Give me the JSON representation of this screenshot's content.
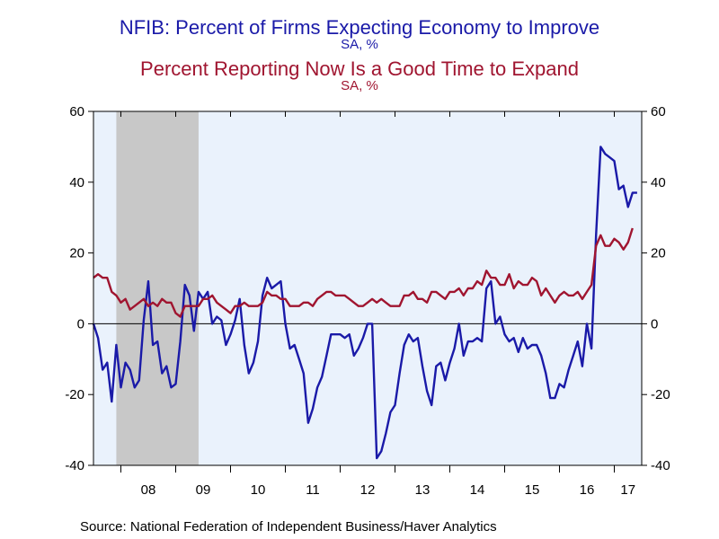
{
  "chart_data": {
    "type": "line",
    "title": "NFIB: Percent of Firms Expecting Economy to Improve",
    "title_sub": "SA, %",
    "title2": "Percent Reporting Now Is a Good Time to Expand",
    "title2_sub": "SA, %",
    "source": "Source:  National Federation of Independent Business/Haver Analytics",
    "x_ticks": [
      "08",
      "09",
      "10",
      "11",
      "12",
      "13",
      "14",
      "15",
      "16",
      "17"
    ],
    "x_start_year": 2007.5,
    "x_end_year": 2017.5,
    "ylim": [
      -40,
      60
    ],
    "y_ticks": [
      -40,
      -20,
      0,
      20,
      40,
      60
    ],
    "grid": false,
    "recession_shading": [
      2007.917,
      2009.417
    ],
    "colors": {
      "series1": "#1a1aa8",
      "series2": "#a01530",
      "plot_bg": "#eaf2fc",
      "recession": "#c8c8c8"
    },
    "series": [
      {
        "name": "NFIB: Percent of Firms Expecting Economy to Improve",
        "color": "#1a1aa8",
        "x_start": 2007.5,
        "step_months": 1,
        "values": [
          0,
          -4,
          -13,
          -11,
          -22,
          -6,
          -18,
          -11,
          -13,
          -18,
          -16,
          1,
          12,
          -6,
          -5,
          -14,
          -12,
          -18,
          -17,
          -5,
          11,
          8,
          -2,
          9,
          7,
          9,
          0,
          2,
          1,
          -6,
          -3,
          1,
          7,
          -6,
          -14,
          -11,
          -5,
          8,
          13,
          10,
          11,
          12,
          0,
          -7,
          -6,
          -10,
          -14,
          -28,
          -24,
          -18,
          -15,
          -9,
          -3,
          -3,
          -3,
          -4,
          -3,
          -9,
          -7,
          -4,
          0,
          0,
          -38,
          -36,
          -31,
          -25,
          -23,
          -14,
          -6,
          -3,
          -5,
          -4,
          -12,
          -19,
          -23,
          -12,
          -11,
          -16,
          -11,
          -7,
          0,
          -9,
          -5,
          -5,
          -4,
          -5,
          10,
          12,
          0,
          2,
          -3,
          -5,
          -4,
          -8,
          -4,
          -7,
          -6,
          -6,
          -9,
          -14,
          -21,
          -21,
          -17,
          -18,
          -13,
          -9,
          -5,
          -12,
          0,
          -7,
          25,
          50,
          48,
          47,
          46,
          38,
          39,
          33,
          37,
          37
        ]
      },
      {
        "name": "Percent Reporting Now Is a Good Time to Expand",
        "color": "#a01530",
        "x_start": 2007.5,
        "step_months": 1,
        "values": [
          13,
          14,
          13,
          13,
          9,
          8,
          6,
          7,
          4,
          5,
          6,
          7,
          5,
          6,
          5,
          7,
          6,
          6,
          3,
          2,
          5,
          5,
          5,
          5,
          7,
          7,
          8,
          6,
          5,
          4,
          3,
          5,
          5,
          6,
          5,
          5,
          5,
          6,
          9,
          8,
          8,
          7,
          7,
          5,
          5,
          5,
          6,
          6,
          5,
          7,
          8,
          9,
          9,
          8,
          8,
          8,
          7,
          6,
          5,
          5,
          6,
          7,
          6,
          7,
          6,
          5,
          5,
          5,
          8,
          8,
          9,
          7,
          7,
          6,
          9,
          9,
          8,
          7,
          9,
          9,
          10,
          8,
          10,
          10,
          12,
          11,
          15,
          13,
          13,
          11,
          11,
          14,
          10,
          12,
          11,
          11,
          13,
          12,
          8,
          10,
          8,
          6,
          8,
          9,
          8,
          8,
          9,
          7,
          9,
          11,
          22,
          25,
          22,
          22,
          24,
          23,
          21,
          23,
          27
        ]
      }
    ]
  }
}
